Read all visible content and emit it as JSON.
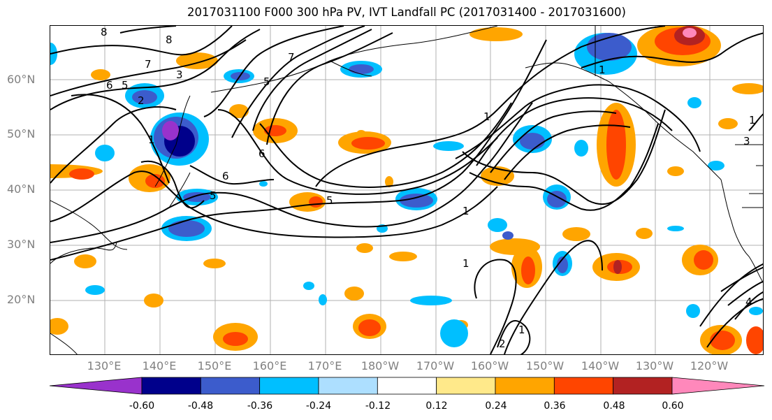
{
  "title": "2017031100 F000 300 hPa PV, IVT Landfall PC (2017031400 - 2017031600)",
  "lat_labels": [
    "60°N",
    "50°N",
    "40°N",
    "30°N",
    "20°N"
  ],
  "lon_labels": [
    "130°E",
    "140°E",
    "150°E",
    "160°E",
    "170°E",
    "180°W",
    "170°W",
    "160°W",
    "150°W",
    "140°W",
    "130°W",
    "120°W"
  ],
  "colorbar": {
    "ticks": [
      "-0.60",
      "-0.48",
      "-0.36",
      "-0.24",
      "-0.12",
      "0.12",
      "0.24",
      "0.36",
      "0.48",
      "0.60"
    ],
    "colors": [
      "#9932CC",
      "#00008B",
      "#3C5CCC",
      "#00BFFF",
      "#ADDFFF",
      "#FFFFFF",
      "#FFE98A",
      "#FFA500",
      "#FF4500",
      "#B22222",
      "#FF88BB"
    ]
  },
  "contour_labels": [
    "8",
    "8",
    "7",
    "6",
    "5",
    "3",
    "2",
    "1",
    "6",
    "7",
    "5",
    "6",
    "5",
    "5",
    "1",
    "1",
    "1",
    "1",
    "2",
    "4",
    "3",
    "1",
    "1"
  ],
  "colors": {
    "contour": "#000000",
    "grid": "#b0b0b0",
    "coast": "#000000"
  }
}
